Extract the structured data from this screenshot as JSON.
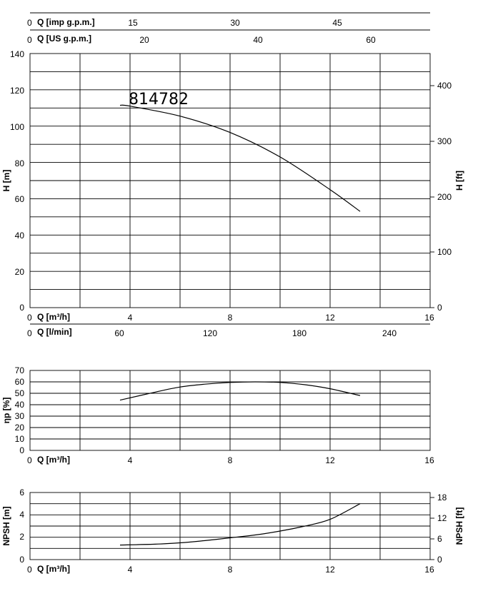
{
  "chart_data": [
    {
      "type": "line",
      "name": "head",
      "annotation": "814782",
      "xlabel": "Q [m³/h]",
      "ylabel": "H [m]",
      "ylabel_right": "H [ft]",
      "xlim": [
        0,
        16
      ],
      "ylim": [
        0,
        140
      ],
      "x_ticks": [
        "0",
        "4",
        "8",
        "12",
        "16"
      ],
      "y_ticks": [
        "0",
        "20",
        "40",
        "60",
        "80",
        "100",
        "120",
        "140"
      ],
      "y_ticks_right": [
        "0",
        "100",
        "200",
        "300",
        "400"
      ],
      "grid": true,
      "extra_axes": [
        {
          "label": "Q [imp g.p.m.]",
          "ticks": [
            "0",
            "15",
            "30",
            "45"
          ]
        },
        {
          "label": "Q [US g.p.m.]",
          "ticks": [
            "0",
            "20",
            "40",
            "60"
          ]
        },
        {
          "label": "Q [l/min]",
          "ticks": [
            "0",
            "60",
            "120",
            "180",
            "240"
          ]
        }
      ],
      "series": [
        {
          "x": [
            3.6,
            4.0,
            6.0,
            8.0,
            10.0,
            12.0,
            13.2
          ],
          "y": [
            111.5,
            111.0,
            105.5,
            96.5,
            83.0,
            65.0,
            53.0
          ]
        }
      ]
    },
    {
      "type": "line",
      "name": "efficiency",
      "xlabel": "Q [m³/h]",
      "ylabel": "ηp [%]",
      "xlim": [
        0,
        16
      ],
      "ylim": [
        0,
        70
      ],
      "x_ticks": [
        "0",
        "4",
        "8",
        "12",
        "16"
      ],
      "y_ticks": [
        "0",
        "10",
        "20",
        "30",
        "40",
        "50",
        "60",
        "70"
      ],
      "grid": true,
      "series": [
        {
          "x": [
            3.6,
            5.0,
            6.0,
            7.0,
            8.0,
            9.0,
            10.0,
            11.0,
            12.0,
            13.2
          ],
          "y": [
            44.0,
            51.0,
            55.5,
            58.0,
            59.5,
            60.0,
            59.5,
            57.5,
            54.0,
            48.0
          ]
        }
      ]
    },
    {
      "type": "line",
      "name": "npsh",
      "xlabel": "Q [m³/h]",
      "ylabel": "NPSH [m]",
      "ylabel_right": "NPSH [ft]",
      "xlim": [
        0,
        16
      ],
      "ylim": [
        0,
        6
      ],
      "x_ticks": [
        "0",
        "4",
        "8",
        "12",
        "16"
      ],
      "y_ticks": [
        "0",
        "2",
        "4",
        "6"
      ],
      "y_ticks_right": [
        "0",
        "6",
        "12",
        "18"
      ],
      "grid": true,
      "series": [
        {
          "x": [
            3.6,
            5.0,
            6.0,
            7.0,
            8.0,
            9.0,
            10.0,
            11.0,
            12.0,
            13.2
          ],
          "y": [
            1.3,
            1.38,
            1.5,
            1.7,
            1.95,
            2.2,
            2.55,
            3.0,
            3.6,
            5.0
          ]
        }
      ]
    }
  ]
}
